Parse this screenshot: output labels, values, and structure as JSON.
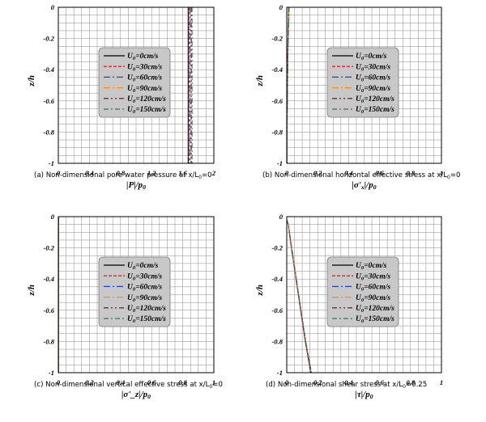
{
  "legend_entries": [
    "U₀=0cm/s",
    "U₀=30cm/s",
    "U₀=60cm/s",
    "U₀=90cm/s",
    "U₀=120cm/s",
    "U₀=150cm/s"
  ],
  "colors": {
    "series": [
      "#000000",
      "#e8212a",
      "#1f3fd6",
      "#ff8c1a",
      "#6b2a3a",
      "#2f7a55"
    ],
    "grid": "#8c8c8c",
    "legend_bg": "#c8c8c8"
  },
  "chart_data": [
    {
      "type": "line",
      "caption": "(a) Non-dimensional pore water pressure at x/L₀=0",
      "xlabel": "|P|/p₀",
      "ylabel": "z/h",
      "xlim": [
        0,
        2
      ],
      "ylim": [
        -1,
        0
      ],
      "xticks": [
        "0",
        "0.4",
        "0.8",
        "1.2",
        "1.6",
        "2"
      ],
      "yticks": [
        "0",
        "-0.2",
        "-0.4",
        "-0.6",
        "-0.8",
        "-1"
      ],
      "grid": true,
      "legend_position": "center",
      "series": [
        {
          "name": "U₀=0cm/s",
          "x": [
            1.67,
            1.67,
            1.67,
            1.67,
            1.67,
            1.67
          ],
          "y": [
            0,
            -0.2,
            -0.4,
            -0.6,
            -0.8,
            -1
          ]
        },
        {
          "name": "U₀=30cm/s",
          "x": [
            1.68,
            1.68,
            1.68,
            1.68,
            1.68,
            1.68
          ],
          "y": [
            0,
            -0.2,
            -0.4,
            -0.6,
            -0.8,
            -1
          ]
        },
        {
          "name": "U₀=60cm/s",
          "x": [
            1.69,
            1.69,
            1.69,
            1.69,
            1.69,
            1.69
          ],
          "y": [
            0,
            -0.2,
            -0.4,
            -0.6,
            -0.8,
            -1
          ]
        },
        {
          "name": "U₀=90cm/s",
          "x": [
            1.7,
            1.7,
            1.7,
            1.7,
            1.7,
            1.7
          ],
          "y": [
            0,
            -0.2,
            -0.4,
            -0.6,
            -0.8,
            -1
          ]
        },
        {
          "name": "U₀=120cm/s",
          "x": [
            1.71,
            1.71,
            1.71,
            1.71,
            1.71,
            1.71
          ],
          "y": [
            0,
            -0.2,
            -0.4,
            -0.6,
            -0.8,
            -1
          ]
        },
        {
          "name": "U₀=150cm/s",
          "x": [
            1.72,
            1.72,
            1.72,
            1.72,
            1.72,
            1.72
          ],
          "y": [
            0,
            -0.2,
            -0.4,
            -0.6,
            -0.8,
            -1
          ]
        }
      ]
    },
    {
      "type": "line",
      "caption": "(b) Non-dimensional horizontal effective stress at x/L₀=0",
      "xlabel": "|σ'ₓ|/p₀",
      "ylabel": "z/h",
      "xlim": [
        0,
        1
      ],
      "ylim": [
        -1,
        0
      ],
      "xticks": [
        "0",
        "0.2",
        "0.4",
        "0.6",
        "0.8",
        "1"
      ],
      "yticks": [
        "0",
        "-0.2",
        "-0.4",
        "-0.6",
        "-0.8",
        "-1"
      ],
      "grid": true,
      "legend_position": "center-right",
      "series": [
        {
          "name": "U₀=0cm/s",
          "x": [
            0.012,
            0.008,
            0.005,
            0.003,
            0.0015,
            0.0008
          ],
          "y": [
            0,
            -0.2,
            -0.4,
            -0.6,
            -0.8,
            -1
          ]
        },
        {
          "name": "U₀=30cm/s",
          "x": [
            0.013,
            0.008,
            0.005,
            0.003,
            0.0015,
            0.0008
          ],
          "y": [
            0,
            -0.2,
            -0.4,
            -0.6,
            -0.8,
            -1
          ]
        },
        {
          "name": "U₀=60cm/s",
          "x": [
            0.013,
            0.009,
            0.006,
            0.003,
            0.0016,
            0.0008
          ],
          "y": [
            0,
            -0.2,
            -0.4,
            -0.6,
            -0.8,
            -1
          ]
        },
        {
          "name": "U₀=90cm/s",
          "x": [
            0.014,
            0.009,
            0.006,
            0.003,
            0.0016,
            0.0009
          ],
          "y": [
            0,
            -0.2,
            -0.4,
            -0.6,
            -0.8,
            -1
          ]
        },
        {
          "name": "U₀=120cm/s",
          "x": [
            0.014,
            0.009,
            0.006,
            0.004,
            0.0017,
            0.0009
          ],
          "y": [
            0,
            -0.2,
            -0.4,
            -0.6,
            -0.8,
            -1
          ]
        },
        {
          "name": "U₀=150cm/s",
          "x": [
            0.015,
            0.01,
            0.006,
            0.004,
            0.0017,
            0.0009
          ],
          "y": [
            0,
            -0.2,
            -0.4,
            -0.6,
            -0.8,
            -1
          ]
        }
      ]
    },
    {
      "type": "line",
      "caption": "(c) Non-dimensional vertical effective stress at x/L₀=0",
      "xlabel": "|σ'_z|/p₀",
      "ylabel": "z/h",
      "xlim": [
        0,
        1
      ],
      "ylim": [
        -1,
        0
      ],
      "xticks": [
        "0",
        "0.2",
        "0.4",
        "0.6",
        "0.8",
        "1"
      ],
      "yticks": [
        "0",
        "-0.2",
        "-0.4",
        "-0.6",
        "-0.8",
        "-1"
      ],
      "grid": true,
      "legend_position": "center",
      "series": [
        {
          "name": "U₀=0cm/s",
          "x": [
            0.001,
            0.001,
            0.001,
            0.001,
            0.001,
            0.001
          ],
          "y": [
            0,
            -0.2,
            -0.4,
            -0.6,
            -0.8,
            -1
          ]
        },
        {
          "name": "U₀=30cm/s",
          "x": [
            0.001,
            0.001,
            0.001,
            0.001,
            0.001,
            0.001
          ],
          "y": [
            0,
            -0.2,
            -0.4,
            -0.6,
            -0.8,
            -1
          ]
        },
        {
          "name": "U₀=60cm/s",
          "x": [
            0.001,
            0.001,
            0.001,
            0.001,
            0.001,
            0.001
          ],
          "y": [
            0,
            -0.2,
            -0.4,
            -0.6,
            -0.8,
            -1
          ]
        },
        {
          "name": "U₀=90cm/s",
          "x": [
            0.001,
            0.001,
            0.001,
            0.001,
            0.001,
            0.001
          ],
          "y": [
            0,
            -0.2,
            -0.4,
            -0.6,
            -0.8,
            -1
          ]
        },
        {
          "name": "U₀=120cm/s",
          "x": [
            0.001,
            0.001,
            0.001,
            0.001,
            0.001,
            0.001
          ],
          "y": [
            0,
            -0.2,
            -0.4,
            -0.6,
            -0.8,
            -1
          ]
        },
        {
          "name": "U₀=150cm/s",
          "x": [
            0.001,
            0.001,
            0.001,
            0.001,
            0.001,
            0.001
          ],
          "y": [
            0,
            -0.2,
            -0.4,
            -0.6,
            -0.8,
            -1
          ]
        }
      ]
    },
    {
      "type": "line",
      "caption": "(d) Non-dimensional shear stress at x/L₀=0.25",
      "xlabel": "|τ|/p₀",
      "ylabel": "z/h",
      "xlim": [
        0,
        1
      ],
      "ylim": [
        -1,
        0
      ],
      "xticks": [
        "0",
        "0.2",
        "0.4",
        "0.6",
        "0.8",
        "1"
      ],
      "yticks": [
        "0",
        "-0.2",
        "-0.4",
        "-0.6",
        "-0.8",
        "-1"
      ],
      "grid": true,
      "legend_position": "center-right",
      "series": [
        {
          "name": "U₀=0cm/s",
          "x": [
            0.0,
            0.01,
            0.03,
            0.06,
            0.09,
            0.12,
            0.155
          ],
          "y": [
            -0.02,
            -0.05,
            -0.2,
            -0.4,
            -0.6,
            -0.8,
            -1
          ]
        },
        {
          "name": "U₀=30cm/s",
          "x": [
            0.0,
            0.01,
            0.03,
            0.06,
            0.09,
            0.12,
            0.156
          ],
          "y": [
            -0.02,
            -0.05,
            -0.2,
            -0.4,
            -0.6,
            -0.8,
            -1
          ]
        },
        {
          "name": "U₀=60cm/s",
          "x": [
            0.0,
            0.01,
            0.031,
            0.061,
            0.091,
            0.121,
            0.157
          ],
          "y": [
            -0.02,
            -0.05,
            -0.2,
            -0.4,
            -0.6,
            -0.8,
            -1
          ]
        },
        {
          "name": "U₀=90cm/s",
          "x": [
            0.0,
            0.01,
            0.031,
            0.061,
            0.091,
            0.122,
            0.158
          ],
          "y": [
            -0.02,
            -0.05,
            -0.2,
            -0.4,
            -0.6,
            -0.8,
            -1
          ]
        },
        {
          "name": "U₀=120cm/s",
          "x": [
            0.0,
            0.01,
            0.032,
            0.062,
            0.092,
            0.122,
            0.159
          ],
          "y": [
            -0.02,
            -0.05,
            -0.2,
            -0.4,
            -0.6,
            -0.8,
            -1
          ]
        },
        {
          "name": "U₀=150cm/s",
          "x": [
            0.0,
            0.01,
            0.032,
            0.062,
            0.092,
            0.123,
            0.16
          ],
          "y": [
            -0.02,
            -0.05,
            -0.2,
            -0.4,
            -0.6,
            -0.8,
            -1
          ]
        }
      ]
    }
  ]
}
